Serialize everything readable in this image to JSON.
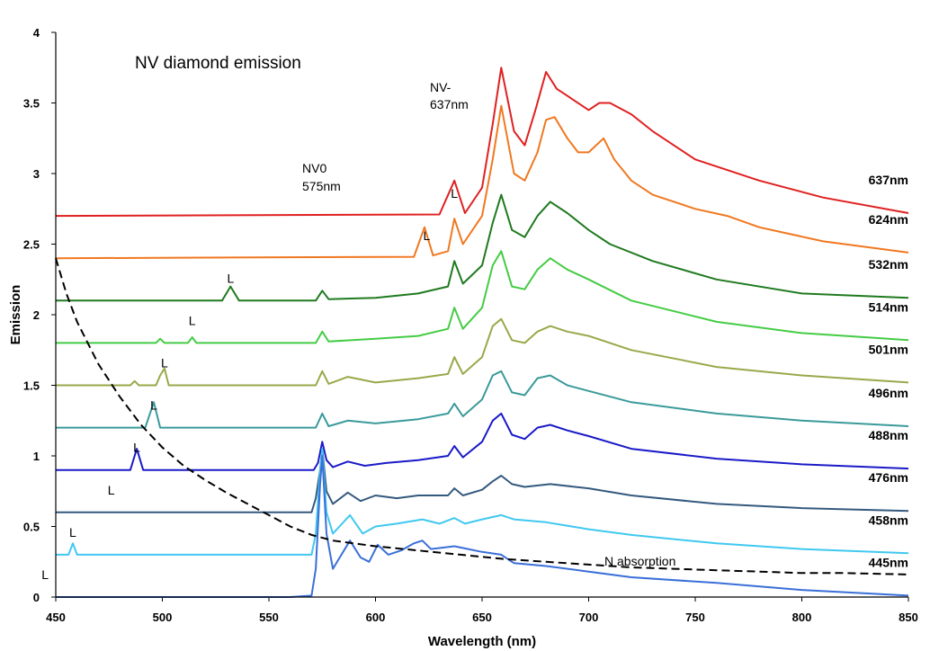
{
  "chart_data": {
    "type": "line",
    "title": "NV diamond emission",
    "xlabel": "Wavelength (nm)",
    "ylabel": "Emission",
    "xlim": [
      450,
      850
    ],
    "ylim": [
      0,
      4
    ],
    "xticks": [
      "450",
      "500",
      "550",
      "600",
      "650",
      "700",
      "750",
      "800",
      "850"
    ],
    "yticks": [
      "0",
      "0.5",
      "1",
      "1.5",
      "2",
      "2.5",
      "3",
      "3.5",
      "4"
    ],
    "grid": false,
    "annotations": {
      "nv0_line1": "NV0",
      "nv0_line2": "575nm",
      "nvm_line1": "NV-",
      "nvm_line2": "637nm",
      "laser_marker": "L",
      "n_absorption": "N absorption"
    },
    "absorption": {
      "name": "N absorption",
      "color": "#000000",
      "x": [
        450,
        455,
        460,
        470,
        480,
        490,
        500,
        510,
        520,
        530,
        540,
        550,
        560,
        570,
        580,
        600,
        620,
        640,
        660,
        680,
        700,
        720,
        740,
        760,
        780,
        800,
        820,
        850
      ],
      "y": [
        2.4,
        2.15,
        1.95,
        1.65,
        1.42,
        1.22,
        1.06,
        0.93,
        0.83,
        0.74,
        0.66,
        0.58,
        0.5,
        0.44,
        0.4,
        0.36,
        0.33,
        0.3,
        0.27,
        0.25,
        0.23,
        0.21,
        0.2,
        0.19,
        0.18,
        0.17,
        0.17,
        0.16
      ]
    },
    "series": [
      {
        "name": "637nm",
        "label": "637nm",
        "excitation": 637,
        "color": "#e02020",
        "baseline": 2.7,
        "x": [
          450,
          630,
          637,
          642,
          650,
          655,
          659,
          665,
          670,
          675,
          680,
          685,
          690,
          700,
          705,
          710,
          720,
          730,
          750,
          780,
          810,
          850
        ],
        "y": [
          2.7,
          2.71,
          2.95,
          2.72,
          2.9,
          3.35,
          3.75,
          3.3,
          3.2,
          3.45,
          3.72,
          3.6,
          3.55,
          3.45,
          3.5,
          3.5,
          3.42,
          3.3,
          3.1,
          2.95,
          2.83,
          2.72
        ]
      },
      {
        "name": "624nm",
        "label": "624nm",
        "excitation": 624,
        "color": "#f07820",
        "baseline": 2.4,
        "x": [
          450,
          618,
          623,
          627,
          634,
          637,
          641,
          650,
          655,
          659,
          665,
          670,
          676,
          680,
          684,
          690,
          695,
          700,
          707,
          712,
          720,
          730,
          750,
          765,
          780,
          810,
          850
        ],
        "y": [
          2.4,
          2.41,
          2.62,
          2.42,
          2.45,
          2.68,
          2.5,
          2.7,
          3.1,
          3.48,
          3.0,
          2.95,
          3.15,
          3.38,
          3.4,
          3.25,
          3.15,
          3.15,
          3.25,
          3.1,
          2.95,
          2.85,
          2.75,
          2.7,
          2.62,
          2.52,
          2.44
        ]
      },
      {
        "name": "532nm",
        "label": "532nm",
        "excitation": 532,
        "color": "#1f7a1f",
        "baseline": 2.1,
        "x": [
          450,
          528,
          532,
          536,
          572,
          575,
          578,
          600,
          620,
          634,
          637,
          641,
          650,
          655,
          659,
          664,
          670,
          676,
          682,
          690,
          700,
          710,
          730,
          760,
          800,
          850
        ],
        "y": [
          2.1,
          2.1,
          2.2,
          2.1,
          2.1,
          2.17,
          2.11,
          2.12,
          2.15,
          2.2,
          2.38,
          2.22,
          2.35,
          2.65,
          2.85,
          2.6,
          2.55,
          2.7,
          2.8,
          2.72,
          2.6,
          2.5,
          2.38,
          2.25,
          2.15,
          2.12
        ]
      },
      {
        "name": "514nm",
        "label": "514nm",
        "excitation": 514,
        "color": "#44cc44",
        "baseline": 1.8,
        "x": [
          450,
          497,
          499,
          501,
          512,
          514,
          516,
          572,
          575,
          578,
          600,
          620,
          634,
          637,
          641,
          650,
          655,
          659,
          664,
          670,
          676,
          682,
          690,
          700,
          720,
          760,
          800,
          850
        ],
        "y": [
          1.8,
          1.8,
          1.83,
          1.8,
          1.8,
          1.84,
          1.8,
          1.8,
          1.88,
          1.81,
          1.83,
          1.85,
          1.9,
          2.05,
          1.9,
          2.05,
          2.35,
          2.45,
          2.2,
          2.18,
          2.32,
          2.4,
          2.32,
          2.25,
          2.1,
          1.95,
          1.87,
          1.82
        ]
      },
      {
        "name": "501nm",
        "label": "501nm",
        "excitation": 501,
        "color": "#9aa84a",
        "baseline": 1.5,
        "x": [
          450,
          485,
          487,
          489,
          497,
          499,
          501,
          503,
          572,
          575,
          578,
          587,
          600,
          620,
          634,
          637,
          641,
          650,
          655,
          659,
          664,
          670,
          676,
          682,
          690,
          700,
          720,
          760,
          800,
          850
        ],
        "y": [
          1.5,
          1.5,
          1.53,
          1.5,
          1.5,
          1.57,
          1.62,
          1.5,
          1.5,
          1.6,
          1.51,
          1.56,
          1.52,
          1.55,
          1.58,
          1.7,
          1.58,
          1.7,
          1.92,
          1.97,
          1.82,
          1.8,
          1.88,
          1.92,
          1.88,
          1.85,
          1.75,
          1.63,
          1.57,
          1.52
        ]
      },
      {
        "name": "496nm",
        "label": "496nm",
        "excitation": 496,
        "color": "#3a9a9a",
        "baseline": 1.2,
        "x": [
          450,
          492,
          496,
          499,
          572,
          575,
          578,
          587,
          600,
          620,
          634,
          637,
          641,
          650,
          655,
          659,
          664,
          670,
          676,
          682,
          690,
          700,
          720,
          760,
          800,
          850
        ],
        "y": [
          1.2,
          1.2,
          1.38,
          1.2,
          1.2,
          1.3,
          1.21,
          1.25,
          1.23,
          1.26,
          1.3,
          1.37,
          1.28,
          1.4,
          1.57,
          1.6,
          1.45,
          1.43,
          1.55,
          1.57,
          1.5,
          1.46,
          1.38,
          1.3,
          1.25,
          1.21
        ]
      },
      {
        "name": "488nm",
        "label": "488nm",
        "excitation": 488,
        "color": "#1a1ac8",
        "baseline": 0.9,
        "x": [
          450,
          485,
          488,
          491,
          571,
          573,
          575,
          577,
          580,
          587,
          595,
          605,
          620,
          634,
          637,
          641,
          650,
          655,
          659,
          664,
          670,
          676,
          682,
          690,
          700,
          720,
          760,
          800,
          850
        ],
        "y": [
          0.9,
          0.9,
          1.05,
          0.9,
          0.9,
          0.95,
          1.1,
          0.97,
          0.92,
          0.96,
          0.93,
          0.95,
          0.97,
          1.0,
          1.07,
          0.99,
          1.1,
          1.25,
          1.3,
          1.15,
          1.12,
          1.2,
          1.22,
          1.18,
          1.14,
          1.05,
          0.98,
          0.94,
          0.91
        ]
      },
      {
        "name": "476nm",
        "label": "476nm",
        "excitation": 476,
        "color": "#34597e",
        "baseline": 0.6,
        "x": [
          450,
          570,
          572,
          574,
          575,
          577,
          580,
          587,
          593,
          600,
          610,
          620,
          634,
          637,
          641,
          650,
          655,
          659,
          664,
          670,
          682,
          700,
          720,
          760,
          800,
          850
        ],
        "y": [
          0.6,
          0.6,
          0.7,
          0.9,
          1.05,
          0.75,
          0.66,
          0.74,
          0.68,
          0.72,
          0.7,
          0.72,
          0.72,
          0.77,
          0.72,
          0.76,
          0.82,
          0.86,
          0.8,
          0.78,
          0.8,
          0.77,
          0.72,
          0.66,
          0.63,
          0.61
        ]
      },
      {
        "name": "458nm",
        "label": "458nm",
        "excitation": 458,
        "color": "#40c8f0",
        "baseline": 0.3,
        "x": [
          450,
          456,
          458,
          460,
          500,
          540,
          570,
          572,
          574,
          575,
          577,
          580,
          588,
          594,
          600,
          610,
          622,
          630,
          637,
          642,
          650,
          659,
          665,
          680,
          700,
          720,
          760,
          800,
          850
        ],
        "y": [
          0.3,
          0.3,
          0.38,
          0.3,
          0.3,
          0.3,
          0.3,
          0.45,
          0.9,
          1.05,
          0.6,
          0.45,
          0.58,
          0.45,
          0.5,
          0.52,
          0.55,
          0.52,
          0.56,
          0.52,
          0.55,
          0.58,
          0.55,
          0.53,
          0.48,
          0.44,
          0.38,
          0.34,
          0.31
        ]
      },
      {
        "name": "445nm",
        "label": "445nm",
        "excitation": 445,
        "color": "#3a6fd8",
        "baseline": 0.0,
        "x": [
          450,
          560,
          570,
          572,
          574,
          575,
          577,
          580,
          584,
          588,
          593,
          597,
          601,
          606,
          612,
          618,
          622,
          626,
          637,
          650,
          659,
          665,
          680,
          700,
          720,
          760,
          800,
          850
        ],
        "y": [
          0.0,
          0.0,
          0.01,
          0.2,
          0.8,
          1.0,
          0.45,
          0.2,
          0.3,
          0.4,
          0.28,
          0.25,
          0.37,
          0.3,
          0.33,
          0.38,
          0.4,
          0.34,
          0.36,
          0.32,
          0.3,
          0.24,
          0.22,
          0.18,
          0.14,
          0.1,
          0.05,
          0.01
        ]
      }
    ]
  }
}
